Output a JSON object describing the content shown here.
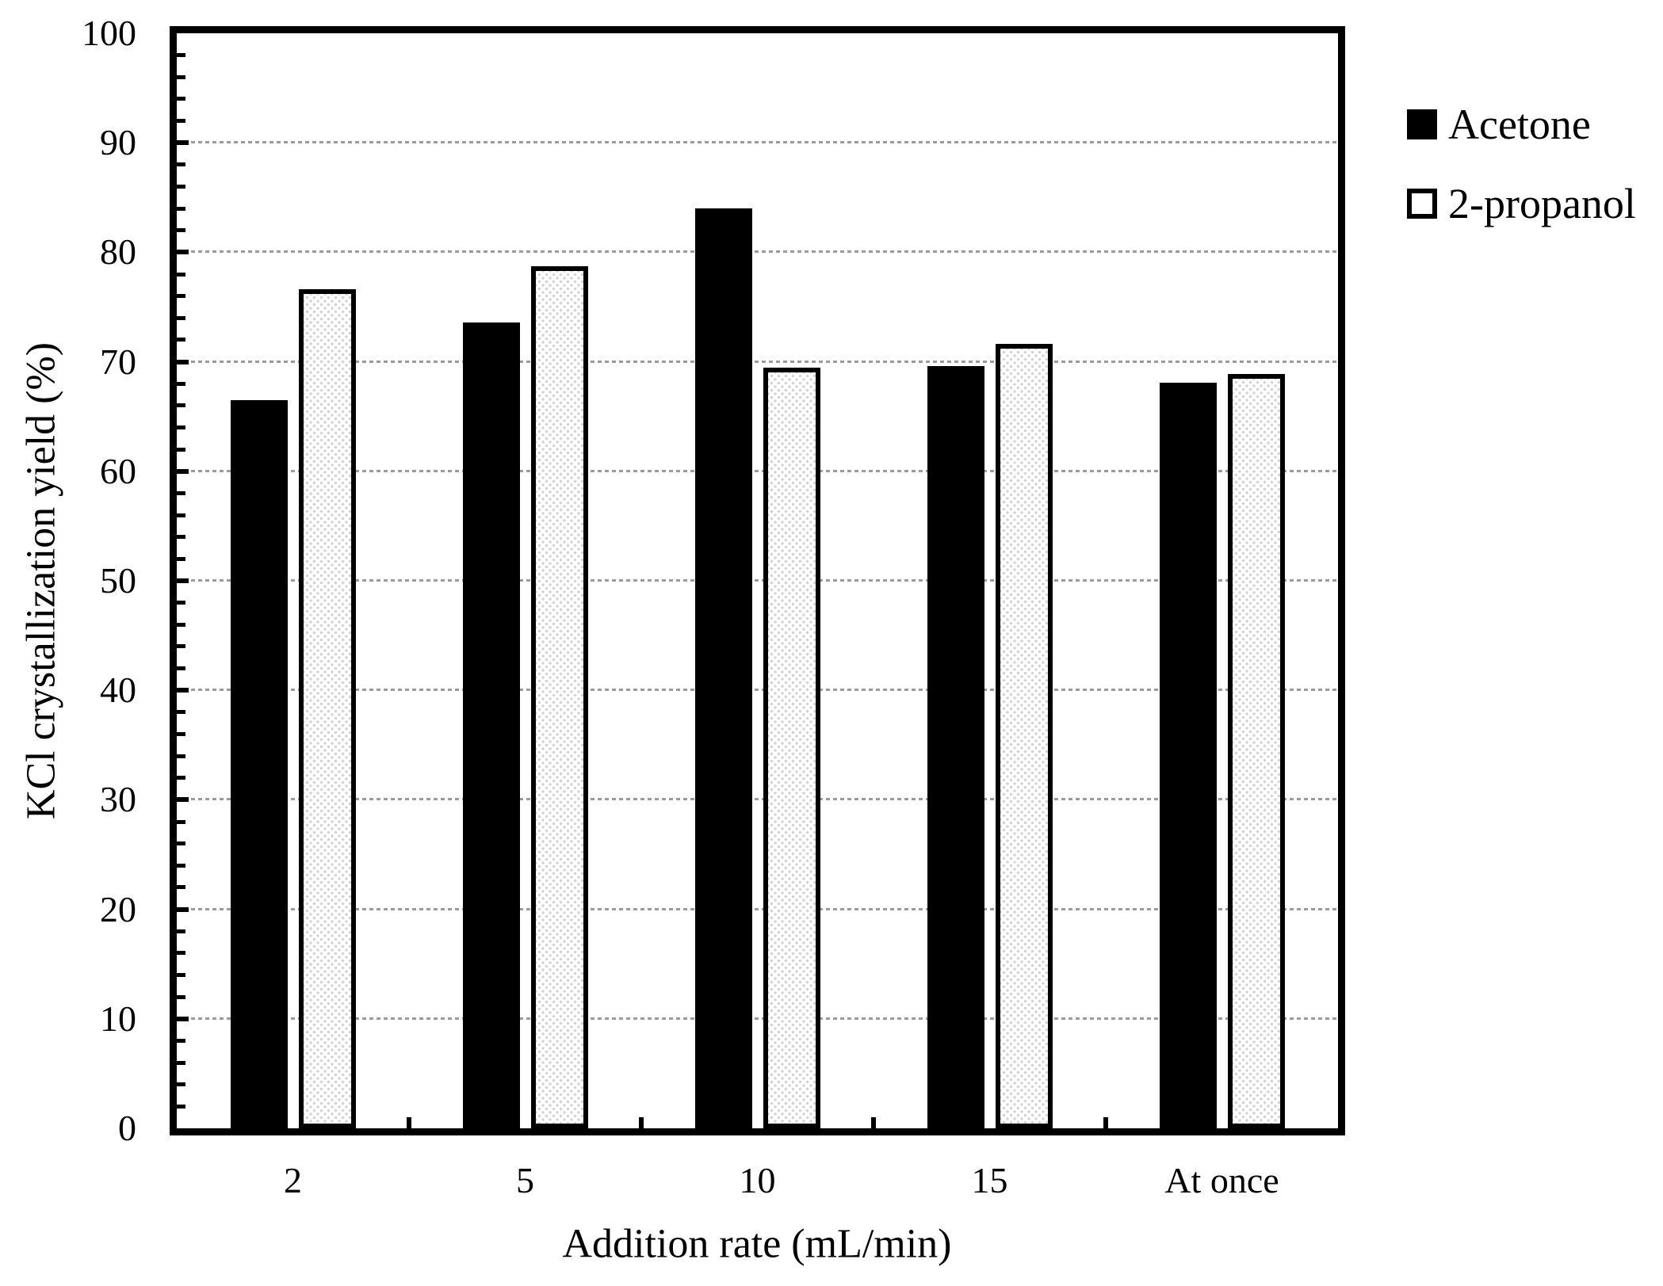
{
  "figure": {
    "background": "#ffffff"
  },
  "y_axis": {
    "label": "KCl crystallization yield (%)",
    "tick_labels": [
      "0",
      "10",
      "20",
      "30",
      "40",
      "50",
      "60",
      "70",
      "80",
      "90",
      "100"
    ],
    "tick_values": [
      0,
      10,
      20,
      30,
      40,
      50,
      60,
      70,
      80,
      90,
      100
    ],
    "gridline_values": [
      10,
      20,
      30,
      40,
      50,
      60,
      70,
      80,
      90
    ],
    "minor_tick_step": 2,
    "range": [
      0,
      100
    ]
  },
  "x_axis": {
    "label": "Addition rate (mL/min)",
    "tick_labels": [
      "2",
      "5",
      "10",
      "15",
      "At once"
    ]
  },
  "legend": {
    "items": [
      {
        "label": "Acetone",
        "marker": "filled-black-square"
      },
      {
        "label": "2-propanol",
        "marker": "open-white-square"
      }
    ]
  },
  "colors": {
    "bar_acetone": "#000000",
    "bar_2propanol_fill": "#ffffff",
    "bar_2propanol_stipple": "#d4d4d4",
    "bar_2propanol_border": "#000000",
    "gridline": "#9b9b9b",
    "frame": "#000000",
    "background": "#ffffff",
    "text": "#000000"
  },
  "chart_data": {
    "type": "bar",
    "title": "",
    "categories": [
      "2",
      "5",
      "10",
      "15",
      "At once"
    ],
    "series": [
      {
        "name": "Acetone",
        "values": [
          66.5,
          73.6,
          84.0,
          69.6,
          68.1
        ]
      },
      {
        "name": "2-propanol",
        "values": [
          76.6,
          78.7,
          69.5,
          71.6,
          68.9
        ]
      }
    ],
    "xlabel": "Addition rate (mL/min)",
    "ylabel": "KCl crystallization yield (%)",
    "ylim": [
      0,
      100
    ],
    "grid": "horizontal dotted lines every 10",
    "legend_position": "outside-top-right"
  }
}
